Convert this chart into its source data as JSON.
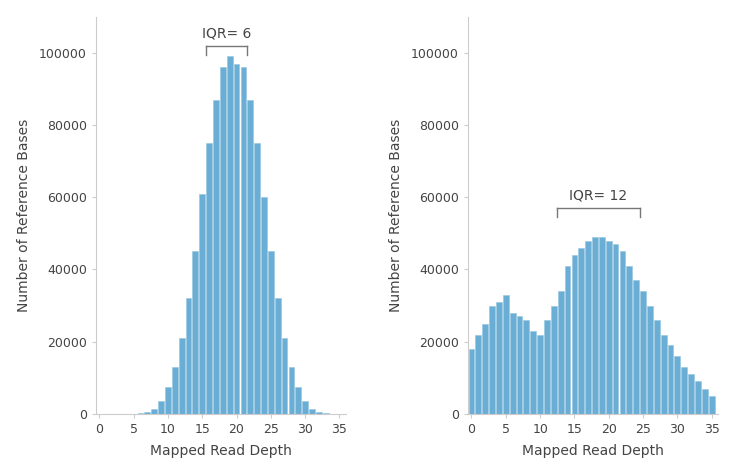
{
  "bar_color": "#6aadd5",
  "bar_edgecolor": "#92c5e0",
  "background_color": "#ffffff",
  "xlabel": "Mapped Read Depth",
  "ylabel": "Number of Reference Bases",
  "ylim_left": [
    0,
    110000
  ],
  "ylim_right": [
    0,
    110000
  ],
  "yticks": [
    0,
    20000,
    40000,
    60000,
    80000,
    100000
  ],
  "xticks": [
    0,
    5,
    10,
    15,
    20,
    25,
    30,
    35
  ],
  "xlim": [
    -0.5,
    36
  ],
  "left_values": [
    0,
    0,
    0,
    0,
    0,
    0,
    200,
    500,
    1500,
    3500,
    7500,
    13000,
    21000,
    32000,
    45000,
    61000,
    75000,
    87000,
    96000,
    99000,
    97000,
    96000,
    87000,
    75000,
    60000,
    45000,
    32000,
    21000,
    13000,
    7500,
    3500,
    1500,
    500,
    200,
    100,
    50
  ],
  "left_iqr_label": "IQR= 6",
  "left_iqr_x1": 15.5,
  "left_iqr_x2": 21.5,
  "left_iqr_y": 102000,
  "right_values": [
    18000,
    22000,
    25000,
    30000,
    31000,
    33000,
    28000,
    27000,
    26000,
    23000,
    22000,
    26000,
    30000,
    34000,
    41000,
    44000,
    46000,
    48000,
    49000,
    49000,
    48000,
    47000,
    45000,
    41000,
    37000,
    34000,
    30000,
    26000,
    22000,
    19000,
    16000,
    13000,
    11000,
    9000,
    7000,
    5000
  ],
  "right_iqr_label": "IQR= 12",
  "right_iqr_x1": 12.5,
  "right_iqr_x2": 24.5,
  "right_iqr_y": 57000,
  "tick_fontsize": 9,
  "label_fontsize": 10,
  "iqr_fontsize": 10,
  "spine_color": "#cccccc",
  "tick_color": "#999999",
  "text_color": "#444444",
  "iqr_color": "#777777"
}
